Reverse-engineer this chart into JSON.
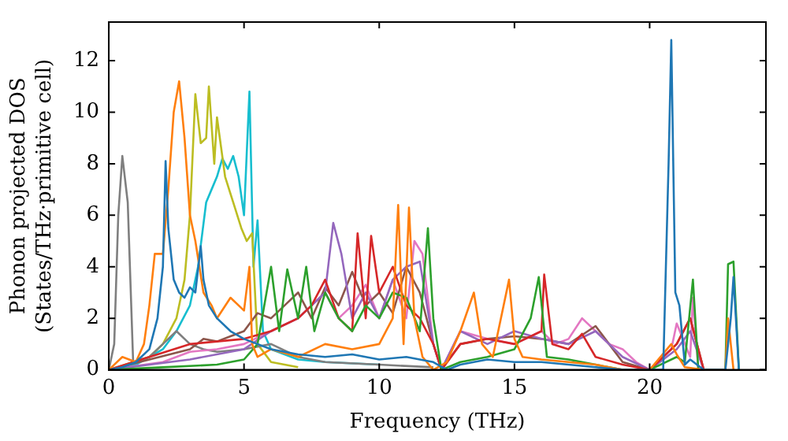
{
  "chart_data": {
    "type": "line",
    "xlabel": "Frequency (THz)",
    "ylabel": "Phonon projected DOS\n(States/THz·primitive cell)",
    "xlim": [
      0,
      24.3
    ],
    "xticks": [
      0,
      5,
      10,
      15,
      20
    ],
    "ylim": [
      0,
      13.5
    ],
    "yticks": [
      0,
      2,
      4,
      6,
      8,
      10,
      12
    ],
    "grid": false,
    "legend": false,
    "marker": "none",
    "line_style": "solid",
    "series": [
      {
        "color": "#1f77b4",
        "x": [
          0,
          0.5,
          1,
          1.5,
          1.8,
          2.0,
          2.1,
          2.2,
          2.4,
          2.6,
          2.8,
          3.0,
          3.2,
          3.4,
          3.5,
          3.7,
          4,
          4.5,
          5,
          5.5,
          6,
          7,
          8,
          9,
          10,
          11,
          12,
          12.5,
          13,
          14,
          15,
          16,
          17,
          18,
          19,
          20.5,
          20.7,
          20.8,
          20.95,
          21.1,
          21.3,
          21.5,
          22,
          22.8,
          23,
          23.1,
          23.3
        ],
        "values": [
          0,
          0.1,
          0.3,
          0.8,
          2,
          4,
          8.1,
          5.5,
          3.5,
          3,
          2.8,
          3.2,
          3,
          4.8,
          3.5,
          2.5,
          2,
          1.5,
          1.2,
          1,
          0.8,
          0.6,
          0.5,
          0.6,
          0.4,
          0.5,
          0.3,
          0,
          0.2,
          0.4,
          0.3,
          0.3,
          0.2,
          0.1,
          0,
          0,
          8,
          12.8,
          3,
          2.5,
          0.2,
          0.4,
          0,
          0,
          2,
          3.6,
          0
        ]
      },
      {
        "color": "#ff7f0e",
        "x": [
          0,
          0.5,
          1,
          1.3,
          1.5,
          1.7,
          2.0,
          2.2,
          2.4,
          2.6,
          2.8,
          3.0,
          3.2,
          3.5,
          3.8,
          4,
          4.5,
          5,
          5.2,
          5.3,
          5.5,
          6,
          7,
          8,
          9,
          10,
          10.5,
          10.7,
          10.9,
          11.1,
          11.3,
          11.6,
          12,
          12.5,
          13,
          13.5,
          13.8,
          14.2,
          14.8,
          15,
          15.3,
          16,
          17,
          18,
          19,
          20,
          20.8,
          21,
          21.3,
          22,
          22.8,
          22.9,
          23.1
        ],
        "values": [
          0,
          0.5,
          0.3,
          1,
          2.5,
          4.5,
          4.5,
          7,
          10,
          11.2,
          9,
          6,
          5,
          3,
          2.5,
          2,
          2.8,
          2.3,
          4,
          1,
          0.5,
          0.8,
          0.5,
          1,
          0.8,
          1,
          2,
          6.4,
          1,
          6.3,
          2,
          0.5,
          0,
          0.3,
          1.5,
          3,
          1,
          0.5,
          3.5,
          1.2,
          0.5,
          0.4,
          0.3,
          0.2,
          0,
          0,
          1,
          0.6,
          0.1,
          0,
          0,
          2,
          0
        ]
      },
      {
        "color": "#2ca02c",
        "x": [
          0,
          2,
          4,
          5,
          5.5,
          6,
          6.3,
          6.6,
          7,
          7.3,
          7.6,
          8,
          8.5,
          9,
          9.5,
          10,
          10.5,
          11,
          11.5,
          11.8,
          12,
          12.3,
          13,
          14,
          15,
          15.6,
          15.9,
          16.2,
          17,
          18,
          19,
          20,
          21,
          21.3,
          21.6,
          21.8,
          22.8,
          22.9,
          23.1,
          23.3
        ],
        "values": [
          0,
          0.1,
          0.2,
          0.4,
          1,
          4,
          1.5,
          3.9,
          2,
          4,
          1.5,
          3,
          2,
          1.5,
          2.5,
          2,
          3,
          2.8,
          1.5,
          5.5,
          2,
          0,
          0.3,
          0.5,
          0.8,
          2,
          3.6,
          0.5,
          0.4,
          0.2,
          0,
          0,
          0.5,
          0.3,
          3.5,
          0,
          0,
          4.1,
          4.2,
          0
        ]
      },
      {
        "color": "#d62728",
        "x": [
          0,
          3,
          5,
          6,
          7,
          7.5,
          8,
          8.5,
          9,
          9.2,
          9.5,
          9.7,
          10,
          10.5,
          11,
          11.5,
          12,
          12.3,
          13,
          14,
          15,
          16,
          16.1,
          16.4,
          17,
          17.5,
          18,
          19,
          20,
          21,
          21.5,
          22
        ],
        "values": [
          0,
          1,
          1.2,
          1.5,
          2,
          2.5,
          3.5,
          2,
          1.5,
          5.3,
          2,
          5.2,
          3,
          4,
          2.5,
          2,
          1,
          0,
          1,
          1.2,
          1,
          1.5,
          3.7,
          1,
          0.8,
          1.4,
          0.5,
          0.2,
          0,
          1,
          2,
          0
        ]
      },
      {
        "color": "#9467bd",
        "x": [
          0,
          3,
          5,
          6,
          7,
          7.5,
          8,
          8.3,
          8.6,
          9,
          9.5,
          10,
          10.5,
          11,
          11.5,
          12,
          12.3,
          13,
          14,
          15,
          16,
          17,
          18,
          19,
          20,
          21,
          21.5,
          22
        ],
        "values": [
          0,
          0.4,
          0.8,
          1.5,
          2,
          2.5,
          3,
          5.7,
          4.5,
          2,
          3,
          2,
          3.5,
          4,
          4.2,
          1,
          0,
          1.5,
          1,
          1.5,
          1.2,
          1,
          1.5,
          0.5,
          0,
          0.8,
          1.5,
          0
        ]
      },
      {
        "color": "#8c564b",
        "x": [
          0,
          3,
          3.5,
          4,
          4.5,
          5,
          5.5,
          6,
          6.5,
          7,
          7.5,
          8,
          8.5,
          9,
          9.5,
          10,
          10.5,
          11,
          11.5,
          12,
          12.3,
          13,
          14,
          15,
          16,
          17,
          18,
          18.5,
          19,
          20,
          21,
          21.5,
          22
        ],
        "values": [
          0,
          0.8,
          1.2,
          1.1,
          1.3,
          1.5,
          2.2,
          2,
          2.5,
          3,
          2,
          3.2,
          2.5,
          3.8,
          2.5,
          3,
          2.2,
          4,
          3,
          1,
          0,
          1,
          1.2,
          1.3,
          1.2,
          1,
          1.7,
          1,
          0.3,
          0,
          1,
          2,
          0
        ]
      },
      {
        "color": "#e377c2",
        "x": [
          0,
          2,
          3,
          4,
          5,
          6,
          7,
          7.5,
          8,
          8.5,
          9,
          9.5,
          10,
          10.5,
          11,
          11.3,
          11.6,
          12,
          12.3,
          13,
          14,
          15,
          16,
          16.5,
          17,
          17.5,
          18,
          18.5,
          19,
          19.5,
          20,
          20.8,
          21,
          21.5,
          21.6,
          21.8
        ],
        "values": [
          0,
          0.3,
          0.7,
          0.8,
          1,
          1.5,
          2,
          2.5,
          3,
          2,
          2.5,
          3.3,
          2,
          3.5,
          2,
          5,
          4.5,
          1,
          0,
          1.5,
          1.2,
          1,
          1.5,
          1,
          1.2,
          2,
          1.5,
          1,
          0.8,
          0.3,
          0,
          0.8,
          1.8,
          0.5,
          2.8,
          0
        ]
      },
      {
        "color": "#7f7f7f",
        "x": [
          0,
          0.2,
          0.35,
          0.5,
          0.7,
          0.9,
          1.5,
          2,
          2.5,
          3,
          3.5,
          4,
          5,
          6,
          7,
          8,
          10,
          12
        ],
        "values": [
          0,
          1,
          6,
          8.3,
          6.5,
          0.3,
          0.5,
          1,
          1.5,
          1,
          0.8,
          0.7,
          0.8,
          1,
          0.5,
          0.3,
          0.2,
          0.1
        ]
      },
      {
        "color": "#bcbd22",
        "x": [
          0,
          1.5,
          2,
          2.5,
          2.8,
          3.0,
          3.2,
          3.4,
          3.6,
          3.7,
          3.9,
          4.0,
          4.3,
          4.6,
          4.9,
          5.1,
          5.3,
          5.5,
          6,
          7
        ],
        "values": [
          0,
          0.5,
          1,
          2,
          3.5,
          6,
          10.7,
          8.8,
          9,
          11,
          8,
          9.8,
          7.5,
          6.5,
          5.5,
          5,
          5.3,
          1,
          0.3,
          0.1
        ]
      },
      {
        "color": "#17becf",
        "x": [
          0,
          1,
          2,
          2.5,
          3,
          3.3,
          3.6,
          3.8,
          4.0,
          4.2,
          4.4,
          4.6,
          4.8,
          5.0,
          5.2,
          5.35,
          5.5,
          5.7,
          6,
          7,
          8,
          10
        ],
        "values": [
          0,
          0.2,
          0.8,
          1.5,
          2.5,
          4,
          6.5,
          7,
          7.5,
          8.2,
          7.8,
          8.3,
          7.5,
          6,
          10.8,
          4,
          5.8,
          1.5,
          0.8,
          0.4,
          0.3,
          0.2
        ]
      }
    ]
  }
}
